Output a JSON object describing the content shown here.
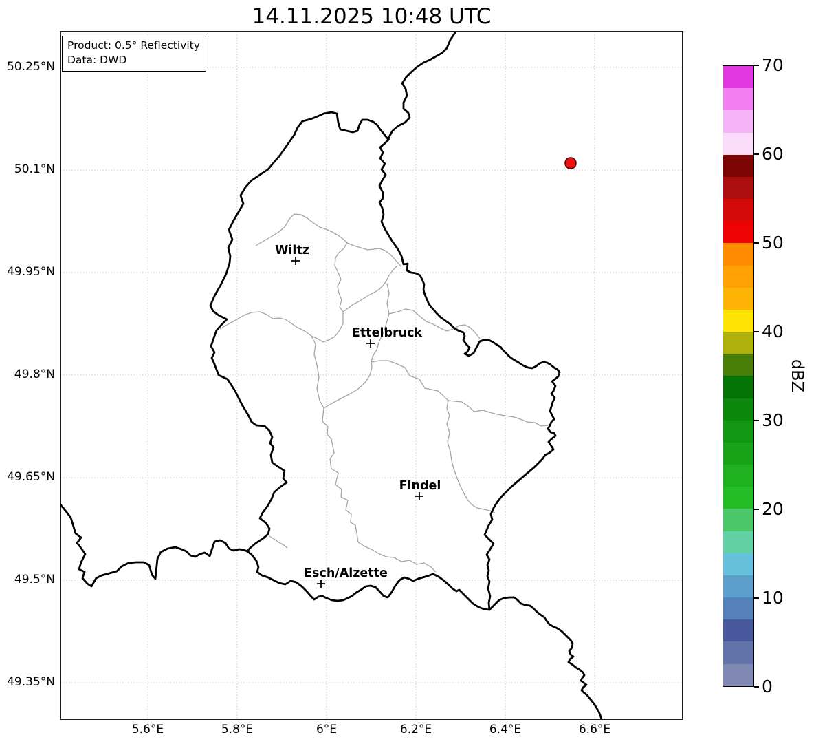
{
  "title": "14.11.2025 10:48 UTC",
  "info_box": {
    "line1": "Product: 0.5° Reflectivity",
    "line2": "Data: DWD"
  },
  "axes": {
    "lat_labels": [
      "50.25°N",
      "50.1°N",
      "49.95°N",
      "49.8°N",
      "49.65°N",
      "49.5°N",
      "49.35°N"
    ],
    "lat_values": [
      50.25,
      50.1,
      49.95,
      49.8,
      49.65,
      49.5,
      49.35
    ],
    "lon_labels": [
      "5.6°E",
      "5.8°E",
      "6°E",
      "6.2°E",
      "6.4°E",
      "6.6°E"
    ],
    "lon_values": [
      5.6,
      5.8,
      6.0,
      6.2,
      6.4,
      6.6
    ]
  },
  "cities": [
    {
      "name": "Wiltz"
    },
    {
      "name": "Ettelbruck"
    },
    {
      "name": "Findel"
    },
    {
      "name": "Esch/Alzette"
    }
  ],
  "station_marker": {
    "color": "#ee1111",
    "edge": "#550000"
  },
  "map_style": {
    "country_border": "#000000",
    "canton_border": "#a3a3a3",
    "gridline": "#c9c9c9"
  },
  "colorbar": {
    "unit_label": "dBZ",
    "tick_labels": [
      "0",
      "10",
      "20",
      "30",
      "40",
      "50",
      "60",
      "70"
    ],
    "tick_values": [
      0,
      10,
      20,
      30,
      40,
      50,
      60,
      70
    ],
    "min": 0,
    "max": 70,
    "step": 2.5,
    "colors_bottom_to_top": [
      "#7e88b2",
      "#6273a9",
      "#48589c",
      "#5481b7",
      "#5c9fcd",
      "#67c1dc",
      "#62cfa5",
      "#49c769",
      "#25bd25",
      "#1fb11f",
      "#18a418",
      "#129712",
      "#0c890c",
      "#067306",
      "#4a7c08",
      "#b0b00a",
      "#ffe405",
      "#ffb405",
      "#ffa004",
      "#ff8c00",
      "#ef0202",
      "#d40a0a",
      "#aa0e0e",
      "#7c0404",
      "#fbdcfb",
      "#f7b3f7",
      "#f27ff2",
      "#e138e1"
    ]
  }
}
